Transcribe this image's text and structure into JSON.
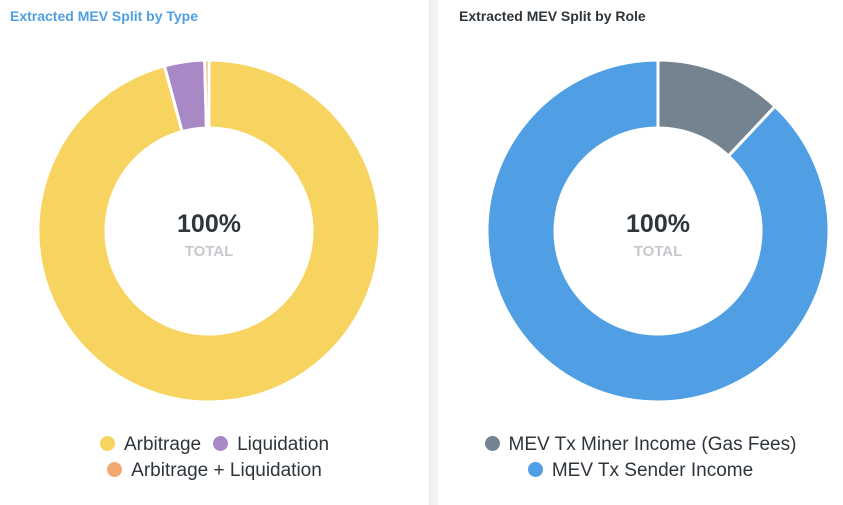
{
  "chart_data": [
    {
      "type": "pie",
      "title": "Extracted MEV Split by Type",
      "center_value": "100%",
      "center_label": "TOTAL",
      "series": [
        {
          "name": "Arbitrage",
          "value": 95.8,
          "color": "#f7d35f"
        },
        {
          "name": "Liquidation",
          "value": 3.8,
          "color": "#a989c5"
        },
        {
          "name": "Arbitrage + Liquidation",
          "value": 0.4,
          "color": "#f2a86f"
        }
      ],
      "legend": "bottom"
    },
    {
      "type": "pie",
      "title": "Extracted MEV Split by Role",
      "center_value": "100%",
      "center_label": "TOTAL",
      "series": [
        {
          "name": "MEV Tx Miner Income (Gas Fees)",
          "value": 12,
          "color": "#74838f"
        },
        {
          "name": "MEV Tx Sender Income",
          "value": 88,
          "color": "#509ee3"
        }
      ],
      "legend": "bottom"
    }
  ]
}
